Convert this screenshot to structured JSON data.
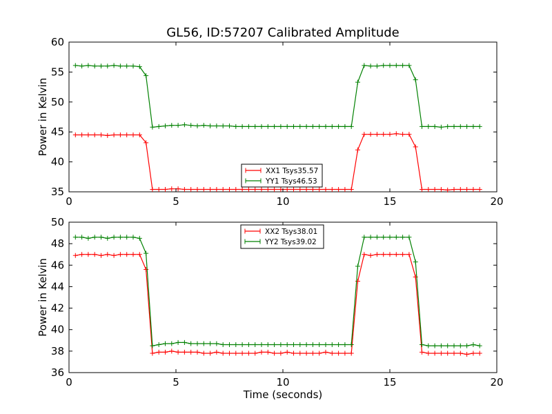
{
  "figure_title": "GL56, ID:57207 Calibrated Amplitude",
  "chart_data": [
    {
      "type": "line",
      "title": "GL56, ID:57207 Calibrated Amplitude",
      "xlabel": "",
      "ylabel": "Power in Kelvin",
      "xlim": [
        0,
        20
      ],
      "ylim": [
        35,
        60
      ],
      "xticks": [
        0,
        5,
        10,
        15,
        20
      ],
      "yticks": [
        35,
        40,
        45,
        50,
        55,
        60
      ],
      "grid": false,
      "legend_position": "lower-center",
      "x": [
        0.3,
        0.6,
        0.9,
        1.2,
        1.5,
        1.8,
        2.1,
        2.4,
        2.7,
        3.0,
        3.3,
        3.6,
        3.9,
        4.2,
        4.5,
        4.8,
        5.1,
        5.4,
        5.7,
        6.0,
        6.3,
        6.6,
        6.9,
        7.2,
        7.5,
        7.8,
        8.1,
        8.4,
        8.7,
        9.0,
        9.3,
        9.6,
        9.9,
        10.2,
        10.5,
        10.8,
        11.1,
        11.4,
        11.7,
        12.0,
        12.3,
        12.6,
        12.9,
        13.2,
        13.5,
        13.8,
        14.1,
        14.4,
        14.7,
        15.0,
        15.3,
        15.6,
        15.9,
        16.2,
        16.5,
        16.8,
        17.1,
        17.4,
        17.7,
        18.0,
        18.3,
        18.6,
        18.9,
        19.2
      ],
      "series": [
        {
          "name": "XX1 Tsys35.57",
          "color": "#ff0000",
          "values": [
            44.5,
            44.5,
            44.5,
            44.5,
            44.5,
            44.4,
            44.5,
            44.5,
            44.5,
            44.5,
            44.5,
            43.2,
            35.4,
            35.4,
            35.4,
            35.5,
            35.5,
            35.4,
            35.4,
            35.4,
            35.4,
            35.4,
            35.4,
            35.4,
            35.4,
            35.4,
            35.4,
            35.4,
            35.4,
            35.4,
            35.4,
            35.4,
            35.4,
            35.4,
            35.4,
            35.4,
            35.4,
            35.4,
            35.4,
            35.4,
            35.4,
            35.4,
            35.4,
            35.4,
            42.0,
            44.6,
            44.6,
            44.6,
            44.6,
            44.6,
            44.7,
            44.6,
            44.6,
            42.5,
            35.4,
            35.4,
            35.4,
            35.4,
            35.3,
            35.4,
            35.4,
            35.4,
            35.4,
            35.4
          ]
        },
        {
          "name": "YY1 Tsys46.53",
          "color": "#008000",
          "values": [
            56.1,
            56.0,
            56.1,
            56.0,
            56.0,
            56.0,
            56.1,
            56.0,
            56.0,
            56.0,
            55.9,
            54.4,
            45.8,
            45.9,
            46.0,
            46.1,
            46.1,
            46.2,
            46.1,
            46.0,
            46.1,
            46.0,
            46.0,
            46.0,
            46.0,
            45.9,
            45.9,
            45.9,
            45.9,
            45.9,
            45.9,
            45.9,
            45.9,
            45.9,
            45.9,
            45.9,
            45.9,
            45.9,
            45.9,
            45.9,
            45.9,
            45.9,
            45.9,
            45.9,
            53.3,
            56.1,
            56.0,
            56.0,
            56.1,
            56.1,
            56.1,
            56.1,
            56.1,
            53.7,
            45.9,
            45.9,
            45.9,
            45.8,
            45.9,
            45.9,
            45.9,
            45.9,
            45.9,
            45.9
          ]
        }
      ]
    },
    {
      "type": "line",
      "title": "",
      "xlabel": "Time (seconds)",
      "ylabel": "Power in Kelvin",
      "xlim": [
        0,
        20
      ],
      "ylim": [
        36,
        50
      ],
      "xticks": [
        0,
        5,
        10,
        15,
        20
      ],
      "yticks": [
        36,
        38,
        40,
        42,
        44,
        46,
        48,
        50
      ],
      "grid": false,
      "legend_position": "upper-center",
      "x": [
        0.3,
        0.6,
        0.9,
        1.2,
        1.5,
        1.8,
        2.1,
        2.4,
        2.7,
        3.0,
        3.3,
        3.6,
        3.9,
        4.2,
        4.5,
        4.8,
        5.1,
        5.4,
        5.7,
        6.0,
        6.3,
        6.6,
        6.9,
        7.2,
        7.5,
        7.8,
        8.1,
        8.4,
        8.7,
        9.0,
        9.3,
        9.6,
        9.9,
        10.2,
        10.5,
        10.8,
        11.1,
        11.4,
        11.7,
        12.0,
        12.3,
        12.6,
        12.9,
        13.2,
        13.5,
        13.8,
        14.1,
        14.4,
        14.7,
        15.0,
        15.3,
        15.6,
        15.9,
        16.2,
        16.5,
        16.8,
        17.1,
        17.4,
        17.7,
        18.0,
        18.3,
        18.6,
        18.9,
        19.2
      ],
      "series": [
        {
          "name": "XX2 Tsys38.01",
          "color": "#ff0000",
          "values": [
            46.9,
            47.0,
            47.0,
            47.0,
            46.9,
            47.0,
            46.9,
            47.0,
            47.0,
            47.0,
            47.0,
            45.6,
            37.8,
            37.9,
            37.9,
            38.0,
            37.9,
            37.9,
            37.9,
            37.9,
            37.8,
            37.8,
            37.9,
            37.8,
            37.8,
            37.8,
            37.8,
            37.8,
            37.8,
            37.9,
            37.9,
            37.8,
            37.8,
            37.9,
            37.8,
            37.8,
            37.8,
            37.8,
            37.8,
            37.9,
            37.8,
            37.8,
            37.8,
            37.8,
            44.5,
            47.0,
            46.9,
            47.0,
            47.0,
            47.0,
            47.0,
            47.0,
            47.0,
            44.9,
            37.9,
            37.8,
            37.8,
            37.8,
            37.8,
            37.8,
            37.8,
            37.7,
            37.8,
            37.8
          ]
        },
        {
          "name": "YY2 Tsys39.02",
          "color": "#008000",
          "values": [
            48.6,
            48.6,
            48.5,
            48.6,
            48.6,
            48.5,
            48.6,
            48.6,
            48.6,
            48.6,
            48.5,
            47.1,
            38.5,
            38.6,
            38.7,
            38.7,
            38.8,
            38.8,
            38.7,
            38.7,
            38.7,
            38.7,
            38.7,
            38.6,
            38.6,
            38.6,
            38.6,
            38.6,
            38.6,
            38.6,
            38.6,
            38.6,
            38.6,
            38.6,
            38.6,
            38.6,
            38.6,
            38.6,
            38.6,
            38.6,
            38.6,
            38.6,
            38.6,
            38.6,
            45.9,
            48.6,
            48.6,
            48.6,
            48.6,
            48.6,
            48.6,
            48.6,
            48.6,
            46.3,
            38.6,
            38.5,
            38.5,
            38.5,
            38.5,
            38.5,
            38.5,
            38.5,
            38.6,
            38.5
          ]
        }
      ]
    }
  ]
}
